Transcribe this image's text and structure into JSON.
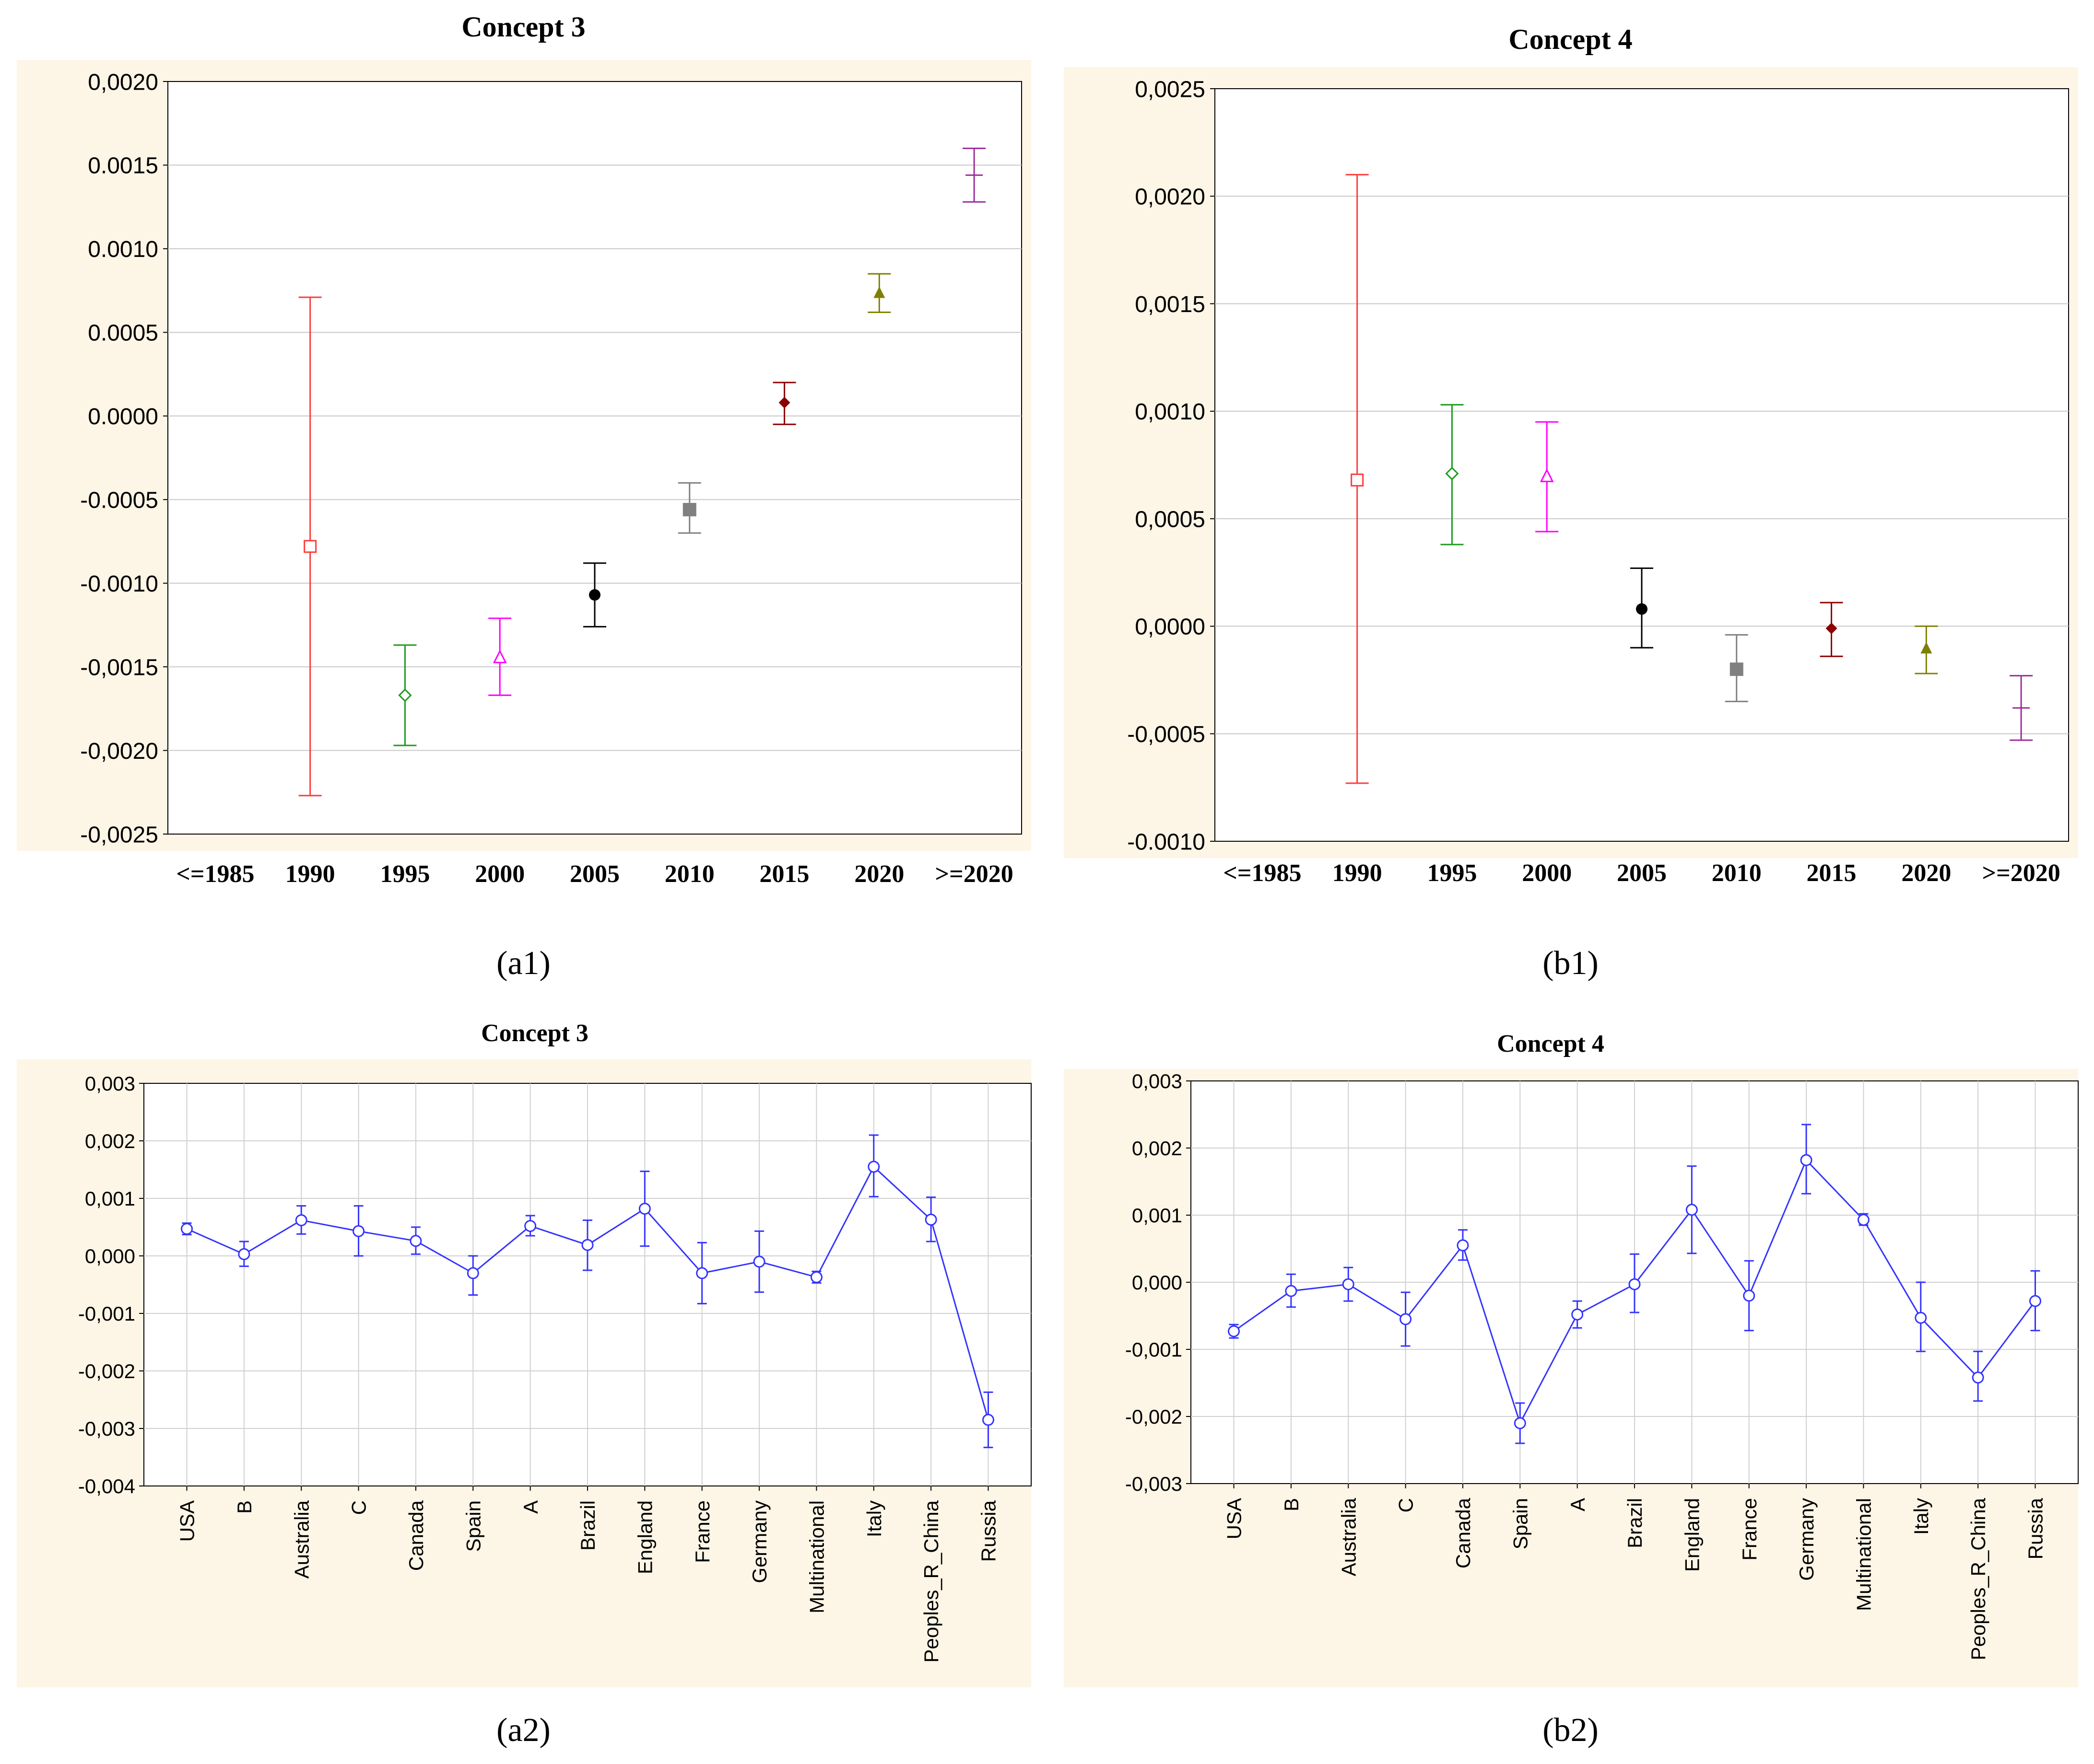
{
  "chart_data": [
    {
      "id": "a1",
      "type": "scatter",
      "title": "Concept 3",
      "caption": "(a1)",
      "categories": [
        "<=1985",
        "1990",
        "1995",
        "2000",
        "2005",
        "2010",
        "2015",
        "2020",
        ">=2020"
      ],
      "ylim": [
        -0.0025,
        0.002
      ],
      "yticks": [
        -0.0025,
        -0.002,
        -0.0015,
        -0.001,
        -0.0005,
        0.0,
        0.0005,
        0.001,
        0.0015,
        0.002
      ],
      "ytick_labels": [
        "-0,0025",
        "-0,0020",
        "-0,0015",
        "-0.0010",
        "-0.0005",
        "0.0000",
        "0.0005",
        "0.0010",
        "0.0015",
        "0,0020"
      ],
      "grid": true,
      "points": [
        {
          "x": "1990",
          "mean": -0.00078,
          "low": -0.00227,
          "high": 0.00071,
          "color": "#ff3b3b",
          "marker": "square-open"
        },
        {
          "x": "1995",
          "mean": -0.00167,
          "low": -0.00197,
          "high": -0.00137,
          "color": "#1e9a1e",
          "marker": "diamond-open"
        },
        {
          "x": "2000",
          "mean": -0.00144,
          "low": -0.00167,
          "high": -0.00121,
          "color": "#ff00ff",
          "marker": "triangle-open"
        },
        {
          "x": "2005",
          "mean": -0.00107,
          "low": -0.00126,
          "high": -0.00088,
          "color": "#000000",
          "marker": "circle-filled"
        },
        {
          "x": "2010",
          "mean": -0.00056,
          "low": -0.0007,
          "high": -0.0004,
          "color": "#808080",
          "marker": "square-filled"
        },
        {
          "x": "2015",
          "mean": 8e-05,
          "low": -5e-05,
          "high": 0.0002,
          "color": "#8b0000",
          "marker": "diamond-filled"
        },
        {
          "x": "2020",
          "mean": 0.00074,
          "low": 0.00062,
          "high": 0.00085,
          "color": "#808000",
          "marker": "triangle-filled"
        },
        {
          "x": ">=2020",
          "mean": 0.00144,
          "low": 0.00128,
          "high": 0.0016,
          "color": "#9b2d9b",
          "marker": "dash"
        }
      ]
    },
    {
      "id": "b1",
      "type": "scatter",
      "title": "Concept 4",
      "caption": "(b1)",
      "categories": [
        "<=1985",
        "1990",
        "1995",
        "2000",
        "2005",
        "2010",
        "2015",
        "2020",
        ">=2020"
      ],
      "ylim": [
        -0.001,
        0.0025
      ],
      "yticks": [
        -0.001,
        -0.0005,
        0.0,
        0.0005,
        0.001,
        0.0015,
        0.002,
        0.0025
      ],
      "ytick_labels": [
        "-0.0010",
        "-0,0005",
        "0,0000",
        "0,0005",
        "0,0010",
        "0,0015",
        "0,0020",
        "0,0025"
      ],
      "grid": true,
      "points": [
        {
          "x": "1990",
          "mean": 0.00068,
          "low": -0.00073,
          "high": 0.0021,
          "color": "#ff3b3b",
          "marker": "square-open"
        },
        {
          "x": "1995",
          "mean": 0.00071,
          "low": 0.00038,
          "high": 0.00103,
          "color": "#1e9a1e",
          "marker": "diamond-open"
        },
        {
          "x": "2000",
          "mean": 0.0007,
          "low": 0.00044,
          "high": 0.00095,
          "color": "#ff00ff",
          "marker": "triangle-open"
        },
        {
          "x": "2005",
          "mean": 8e-05,
          "low": -0.0001,
          "high": 0.00027,
          "color": "#000000",
          "marker": "circle-filled"
        },
        {
          "x": "2010",
          "mean": -0.0002,
          "low": -0.00035,
          "high": -4e-05,
          "color": "#808080",
          "marker": "square-filled"
        },
        {
          "x": "2015",
          "mean": -1e-05,
          "low": -0.00014,
          "high": 0.00011,
          "color": "#8b0000",
          "marker": "diamond-filled"
        },
        {
          "x": "2020",
          "mean": -0.0001,
          "low": -0.00022,
          "high": 0.0,
          "color": "#808000",
          "marker": "triangle-filled"
        },
        {
          "x": ">=2020",
          "mean": -0.00038,
          "low": -0.00053,
          "high": -0.00023,
          "color": "#9b2d9b",
          "marker": "dash"
        }
      ]
    },
    {
      "id": "a2",
      "type": "line",
      "title": "Concept 3",
      "caption": "(a2)",
      "categories": [
        "USA",
        "B",
        "Australia",
        "C",
        "Canada",
        "Spain",
        "A",
        "Brazil",
        "England",
        "France",
        "Germany",
        "Multinational",
        "Italy",
        "Peoples_R_China",
        "Russia"
      ],
      "ylim": [
        -0.004,
        0.003
      ],
      "yticks": [
        -0.004,
        -0.003,
        -0.002,
        -0.001,
        0.0,
        0.001,
        0.002,
        0.003
      ],
      "ytick_labels": [
        "-0,004",
        "-0,003",
        "-0,002",
        "-0,001",
        "0,000",
        "0,001",
        "0,002",
        "0,003"
      ],
      "grid": true,
      "color": "#3333ff",
      "mean": [
        0.00047,
        3e-05,
        0.00062,
        0.00043,
        0.00026,
        -0.0003,
        0.00052,
        0.00019,
        0.00082,
        -0.0003,
        -0.0001,
        -0.00037,
        0.00155,
        0.00063,
        -0.00285
      ],
      "low": [
        0.00037,
        -0.00018,
        0.00038,
        0.0,
        3e-05,
        -0.00068,
        0.00035,
        -0.00025,
        0.00017,
        -0.00083,
        -0.00063,
        -0.00047,
        0.00103,
        0.00025,
        -0.00333
      ],
      "high": [
        0.00057,
        0.00025,
        0.00087,
        0.00087,
        0.0005,
        0.0,
        0.0007,
        0.00062,
        0.00147,
        0.00023,
        0.00043,
        -0.00027,
        0.0021,
        0.00102,
        -0.00237
      ]
    },
    {
      "id": "b2",
      "type": "line",
      "title": "Concept 4",
      "caption": "(b2)",
      "categories": [
        "USA",
        "B",
        "Australia",
        "C",
        "Canada",
        "Spain",
        "A",
        "Brazil",
        "England",
        "France",
        "Germany",
        "Multinational",
        "Italy",
        "Peoples_R_China",
        "Russia"
      ],
      "ylim": [
        -0.003,
        0.003
      ],
      "yticks": [
        -0.003,
        -0.002,
        -0.001,
        0.0,
        0.001,
        0.002,
        0.003
      ],
      "ytick_labels": [
        "-0,003",
        "-0,002",
        "-0,001",
        "0,000",
        "0,001",
        "0,002",
        "0,003"
      ],
      "grid": true,
      "color": "#3333ff",
      "mean": [
        -0.00073,
        -0.00013,
        -3e-05,
        -0.00055,
        0.00055,
        -0.0021,
        -0.00048,
        -3e-05,
        0.00108,
        -0.0002,
        0.00182,
        0.00093,
        -0.00053,
        -0.00142,
        -0.00028
      ],
      "low": [
        -0.00083,
        -0.00037,
        -0.00028,
        -0.00095,
        0.00033,
        -0.0024,
        -0.00068,
        -0.00045,
        0.00043,
        -0.00072,
        0.00132,
        0.00085,
        -0.00103,
        -0.00177,
        -0.00072
      ],
      "high": [
        -0.00063,
        0.00012,
        0.00022,
        -0.00015,
        0.00078,
        -0.0018,
        -0.00028,
        0.00042,
        0.00173,
        0.00032,
        0.00235,
        0.00102,
        0.0,
        -0.00103,
        0.00017
      ]
    }
  ]
}
